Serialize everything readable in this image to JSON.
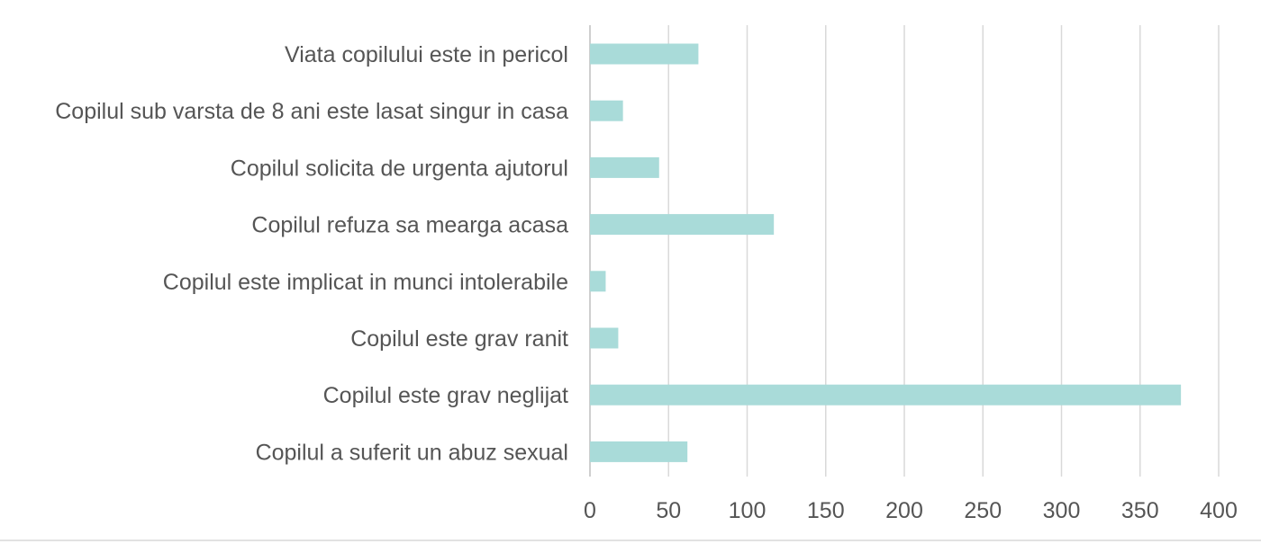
{
  "chart_data": {
    "type": "bar",
    "orientation": "horizontal",
    "categories": [
      "Viata copilului este in pericol",
      "Copilul sub varsta de 8 ani este lasat singur in casa",
      "Copilul solicita de urgenta ajutorul",
      "Copilul refuza sa mearga acasa",
      "Copilul este implicat in munci intolerabile",
      "Copilul este grav ranit",
      "Copilul este grav neglijat",
      "Copilul a suferit un abuz sexual"
    ],
    "values": [
      69,
      21,
      44,
      117,
      10,
      18,
      376,
      62
    ],
    "xlim": [
      0,
      400
    ],
    "xticks": [
      "0",
      "50",
      "100",
      "150",
      "200",
      "250",
      "300",
      "350",
      "400"
    ],
    "title": "",
    "xlabel": "",
    "ylabel": "",
    "grid": "vertical",
    "legend": "none",
    "bar_color": "#a9dbd9"
  }
}
